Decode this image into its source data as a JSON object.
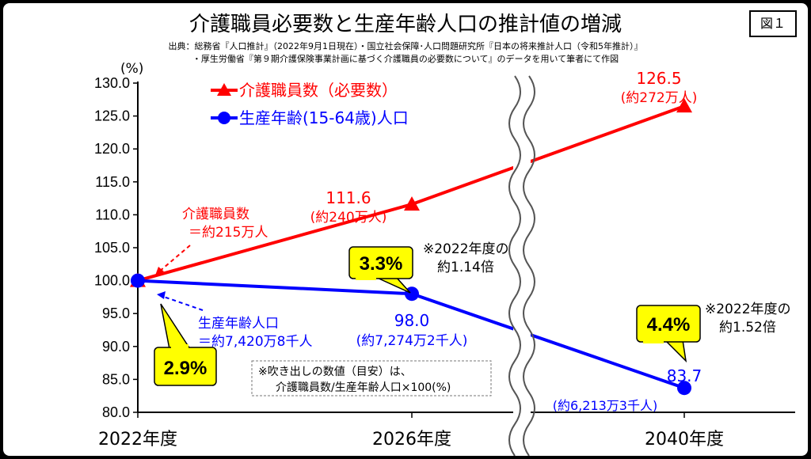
{
  "title": "介護職員必要数と生産年齢人口の推計値の増減",
  "figure_label": "図１",
  "source_line1": "出典：総務省『人口推計』（2022年9月1日現在）・国立社会保障･人口問題研究所『日本の将来推計人口（令和5年推計）』",
  "source_line2": "・厚生労働省『第９期介護保険事業計画に基づく介護職員の必要数について』のデータを用いて筆者にて作図",
  "chart_data": {
    "type": "line",
    "y_unit": "(%)",
    "ylim": [
      80,
      130
    ],
    "yticks": [
      "80.0",
      "85.0",
      "90.0",
      "95.0",
      "100.0",
      "105.0",
      "110.0",
      "115.0",
      "120.0",
      "125.0",
      "130.0"
    ],
    "categories": [
      "2022年度",
      "2026年度",
      "2040年度"
    ],
    "axis_break": "between 2026年度 and 2040年度",
    "grid": false,
    "legend_position": "top-left",
    "series": [
      {
        "name": "介護職員数（必要数）",
        "color": "#ff0000",
        "marker": "triangle",
        "values": [
          100.0,
          111.6,
          126.5
        ],
        "value_labels": [
          "",
          "111.6",
          "126.5"
        ],
        "sub_labels": [
          "",
          "(約240万人)",
          "(約272万人)"
        ]
      },
      {
        "name": "生産年齢(15-64歳)人口",
        "color": "#0000ff",
        "marker": "circle",
        "values": [
          100.0,
          98.0,
          83.7
        ],
        "value_labels": [
          "",
          "98.0",
          "83.7"
        ],
        "sub_labels": [
          "",
          "(約7,274万2千人)",
          "(約6,213万3千人)"
        ]
      }
    ],
    "annotations": {
      "care_base_line1": "介護職員数",
      "care_base_line2": "＝約215万人",
      "pop_base_line1": "生産年齢人口",
      "pop_base_line2": "＝約7,420万8千人",
      "ratio_2022": "2.9%",
      "ratio_2026": "3.3%",
      "ratio_2040": "4.4%",
      "ratio_2026_note_line1": "※2022年度の",
      "ratio_2026_note_line2": "約1.14倍",
      "ratio_2040_note_line1": "※2022年度の",
      "ratio_2040_note_line2": "約1.52倍",
      "footnote_line1": "※吹き出しの数値（目安）は、",
      "footnote_line2": "介護職員数/生産年齢人口×100(%)"
    }
  },
  "colors": {
    "care": "#ff0000",
    "population": "#0000ff",
    "callout": "#ffff00"
  }
}
